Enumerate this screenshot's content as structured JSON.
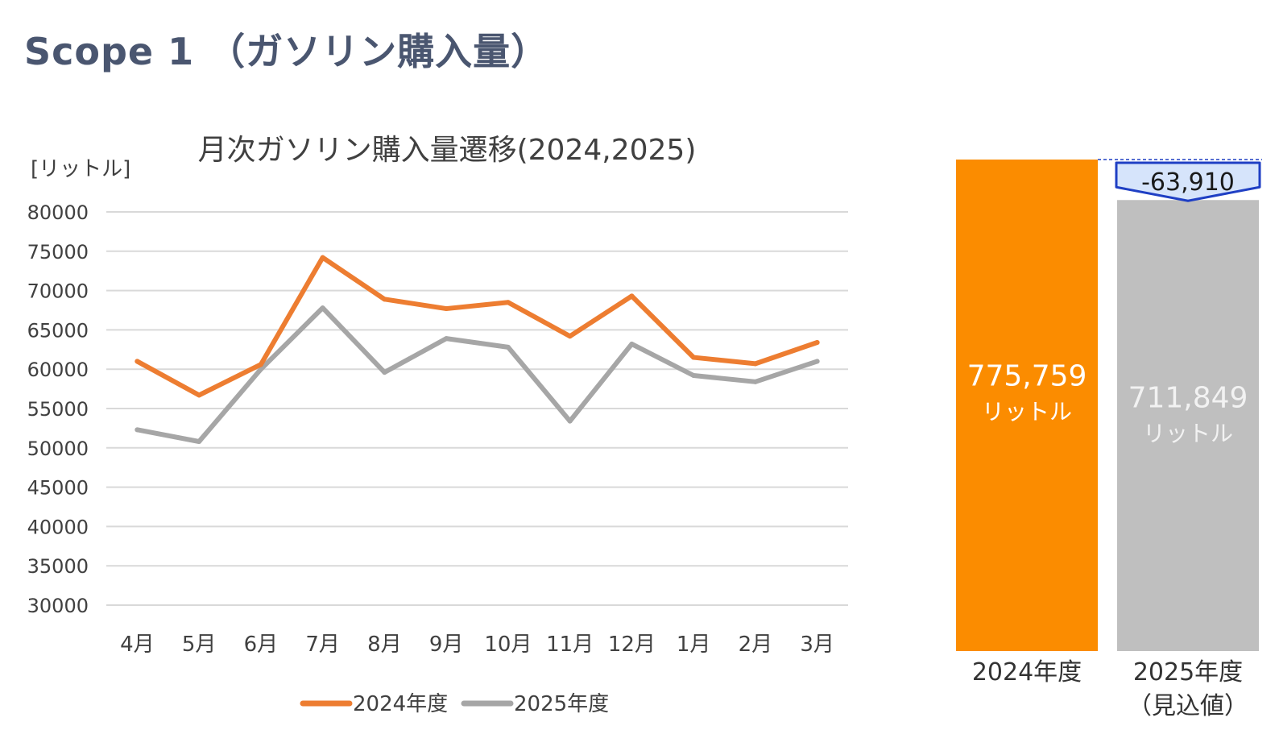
{
  "page": {
    "title": "Scope 1 （ガソリン購入量）"
  },
  "colors": {
    "series_2024": "#ed7d31",
    "series_2025": "#a6a6a6",
    "bar_2024": "#fb8c00",
    "bar_2025": "#bfbfbf",
    "delta_fill": "#d6e4fb",
    "delta_stroke": "#1f3fc4",
    "grid": "#d9d9d9",
    "title_text": "#4a5670"
  },
  "chart_data": [
    {
      "type": "line",
      "title": "月次ガソリン購入量遷移(2024,2025)",
      "ylabel": "[リットル]",
      "xlabel": "",
      "categories": [
        "4月",
        "5月",
        "6月",
        "7月",
        "8月",
        "9月",
        "10月",
        "11月",
        "12月",
        "1月",
        "2月",
        "3月"
      ],
      "ylim": [
        30000,
        80000
      ],
      "yticks": [
        "80000",
        "75000",
        "70000",
        "65000",
        "60000",
        "55000",
        "50000",
        "45000",
        "40000",
        "35000",
        "30000"
      ],
      "grid": true,
      "legend": "bottom",
      "series": [
        {
          "name": "2024年度",
          "color": "#ed7d31",
          "values": [
            61000,
            56700,
            60600,
            74200,
            68900,
            67700,
            68500,
            64200,
            69300,
            61500,
            60700,
            63400
          ]
        },
        {
          "name": "2025年度",
          "color": "#a6a6a6",
          "values": [
            52300,
            50800,
            60000,
            67800,
            59600,
            63900,
            62800,
            53400,
            63200,
            59200,
            58400,
            61000
          ]
        }
      ]
    },
    {
      "type": "bar",
      "title": "",
      "categories": [
        "2024年度",
        "2025年度"
      ],
      "category_sublabels": [
        "",
        "（見込値）"
      ],
      "values": [
        775759,
        711849
      ],
      "value_labels": [
        "775,759",
        "711,849"
      ],
      "unit_label": "リットル",
      "difference_label": "-63,910"
    }
  ]
}
